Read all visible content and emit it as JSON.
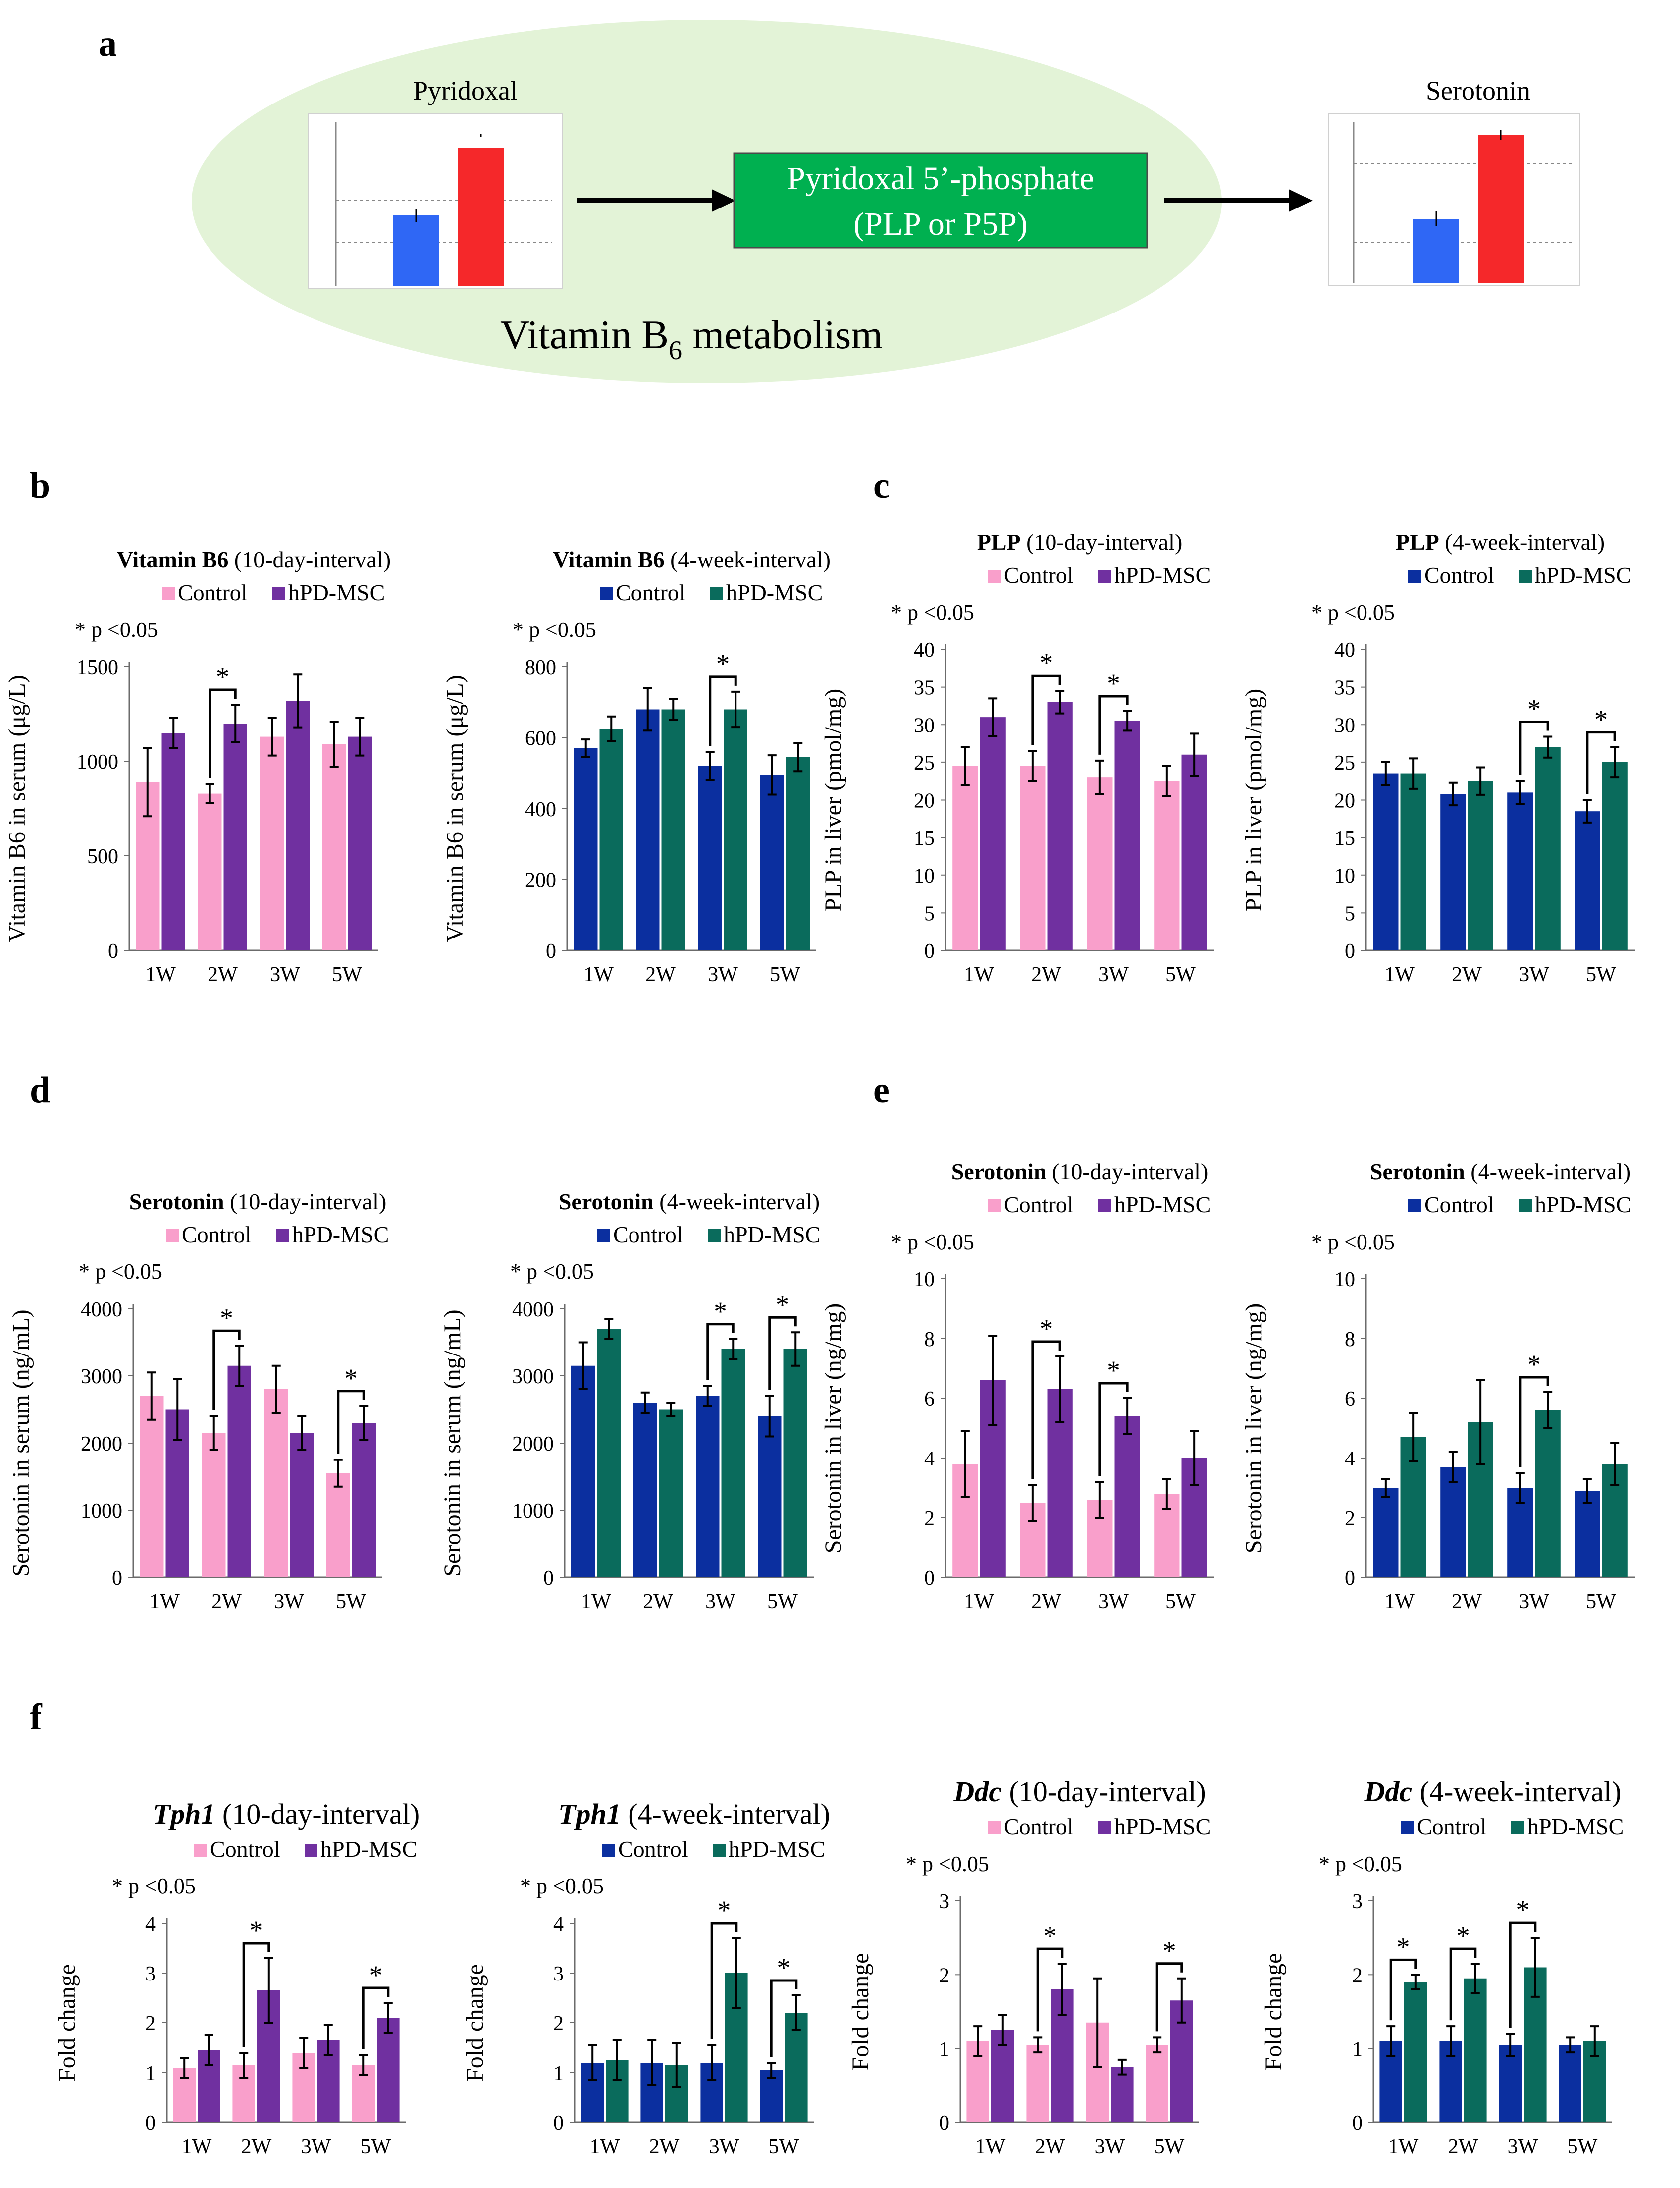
{
  "colors": {
    "pink": "#f99fcb",
    "purple": "#7030a0",
    "navy": "#0b2f9f",
    "teal": "#0a6b5c",
    "blue": "#2f67f5",
    "red": "#f5282a",
    "green": "#00b050",
    "ellipse": "#e3f3d7"
  },
  "panel_a": {
    "letter": "a",
    "pyridoxal_label": "Pyridoxal",
    "serotonin_label": "Serotonin",
    "plp_line1": "Pyridoxal 5’-phosphate",
    "plp_line2": "(PLP or P5P)",
    "vitamin_text": "Vitamin B",
    "vitamin_sub": "6",
    "vitamin_text2": " metabolism"
  },
  "chart_data": [
    {
      "id": "b1",
      "panel": "b",
      "type": "bar",
      "title_bold": "Vitamin B6",
      "title_rest": " (10-day-interval)",
      "ylabel": "Vitamin B6 in serum (μg/L)",
      "ylim": [
        0,
        1500
      ],
      "ticks": [
        0,
        500,
        1000,
        1500
      ],
      "categories": [
        "1W",
        "2W",
        "3W",
        "5W"
      ],
      "legend": [
        "Control",
        "hPD-MSC"
      ],
      "pnote": "* p <0.05",
      "colors": [
        "#f99fcb",
        "#7030a0"
      ],
      "series": [
        {
          "name": "Control",
          "values": [
            890,
            830,
            1130,
            1090
          ],
          "errors": [
            180,
            50,
            100,
            120
          ]
        },
        {
          "name": "hPD-MSC",
          "values": [
            1150,
            1200,
            1320,
            1130
          ],
          "errors": [
            80,
            100,
            140,
            100
          ]
        }
      ],
      "sig": [
        1
      ]
    },
    {
      "id": "b2",
      "type": "bar",
      "title_bold": "Vitamin B6",
      "title_rest": " (4-week-interval)",
      "ylabel": "Vitamin B6 in serum (μg/L)",
      "ylim": [
        0,
        800
      ],
      "ticks": [
        0,
        200,
        400,
        600,
        800
      ],
      "categories": [
        "1W",
        "2W",
        "3W",
        "5W"
      ],
      "legend": [
        "Control",
        "hPD-MSC"
      ],
      "pnote": "* p <0.05",
      "colors": [
        "#0b2f9f",
        "#0a6b5c"
      ],
      "series": [
        {
          "name": "Control",
          "values": [
            570,
            680,
            520,
            495
          ],
          "errors": [
            25,
            60,
            40,
            55
          ]
        },
        {
          "name": "hPD-MSC",
          "values": [
            625,
            680,
            680,
            545
          ],
          "errors": [
            35,
            30,
            50,
            40
          ]
        }
      ],
      "sig": [
        2
      ]
    },
    {
      "id": "c1",
      "panel": "c",
      "type": "bar",
      "title_bold": "PLP",
      "title_rest": " (10-day-interval)",
      "ylabel": "PLP in liver (pmol/mg)",
      "ylim": [
        0,
        40
      ],
      "ticks": [
        0,
        5,
        10,
        15,
        20,
        25,
        30,
        35,
        40
      ],
      "categories": [
        "1W",
        "2W",
        "3W",
        "5W"
      ],
      "legend": [
        "Control",
        "hPD-MSC"
      ],
      "pnote": "* p <0.05",
      "colors": [
        "#f99fcb",
        "#7030a0"
      ],
      "series": [
        {
          "name": "Control",
          "values": [
            24.5,
            24.5,
            23,
            22.5
          ],
          "errors": [
            2.5,
            2,
            2.2,
            2
          ]
        },
        {
          "name": "hPD-MSC",
          "values": [
            31,
            33,
            30.5,
            26
          ],
          "errors": [
            2.5,
            1.5,
            1.3,
            2.8
          ]
        }
      ],
      "sig": [
        1,
        2
      ]
    },
    {
      "id": "c2",
      "type": "bar",
      "title_bold": "PLP",
      "title_rest": " (4-week-interval)",
      "ylabel": "PLP in liver (pmol/mg)",
      "ylim": [
        0,
        40
      ],
      "ticks": [
        0,
        5,
        10,
        15,
        20,
        25,
        30,
        35,
        40
      ],
      "categories": [
        "1W",
        "2W",
        "3W",
        "5W"
      ],
      "legend": [
        "Control",
        "hPD-MSC"
      ],
      "pnote": "* p <0.05",
      "colors": [
        "#0b2f9f",
        "#0a6b5c"
      ],
      "series": [
        {
          "name": "Control",
          "values": [
            23.5,
            20.8,
            21,
            18.5
          ],
          "errors": [
            1.5,
            1.5,
            1.5,
            1.5
          ]
        },
        {
          "name": "hPD-MSC",
          "values": [
            23.5,
            22.5,
            27,
            25
          ],
          "errors": [
            2,
            1.8,
            1.4,
            2
          ]
        }
      ],
      "sig": [
        2,
        3
      ]
    },
    {
      "id": "d1",
      "panel": "d",
      "type": "bar",
      "title_bold": "Serotonin",
      "title_rest": " (10-day-interval)",
      "ylabel": "Serotonin in serum (ng/mL)",
      "ylim": [
        0,
        4000
      ],
      "ticks": [
        0,
        1000,
        2000,
        3000,
        4000
      ],
      "categories": [
        "1W",
        "2W",
        "3W",
        "5W"
      ],
      "legend": [
        "Control",
        "hPD-MSC"
      ],
      "pnote": "* p <0.05",
      "colors": [
        "#f99fcb",
        "#7030a0"
      ],
      "series": [
        {
          "name": "Control",
          "values": [
            2700,
            2150,
            2800,
            1550
          ],
          "errors": [
            350,
            250,
            350,
            200
          ]
        },
        {
          "name": "hPD-MSC",
          "values": [
            2500,
            3150,
            2150,
            2300
          ],
          "errors": [
            450,
            300,
            250,
            250
          ]
        }
      ],
      "sig": [
        1,
        3
      ]
    },
    {
      "id": "d2",
      "type": "bar",
      "title_bold": "Serotonin",
      "title_rest": " (4-week-interval)",
      "ylabel": "Serotonin in serum (ng/mL)",
      "ylim": [
        0,
        4000
      ],
      "ticks": [
        0,
        1000,
        2000,
        3000,
        4000
      ],
      "categories": [
        "1W",
        "2W",
        "3W",
        "5W"
      ],
      "legend": [
        "Control",
        "hPD-MSC"
      ],
      "pnote": "* p <0.05",
      "colors": [
        "#0b2f9f",
        "#0a6b5c"
      ],
      "series": [
        {
          "name": "Control",
          "values": [
            3150,
            2600,
            2700,
            2400
          ],
          "errors": [
            350,
            150,
            150,
            300
          ]
        },
        {
          "name": "hPD-MSC",
          "values": [
            3700,
            2500,
            3400,
            3400
          ],
          "errors": [
            150,
            100,
            150,
            250
          ]
        }
      ],
      "sig": [
        2,
        3
      ]
    },
    {
      "id": "e1",
      "panel": "e",
      "type": "bar",
      "title_bold": "Serotonin",
      "title_rest": " (10-day-interval)",
      "ylabel": "Serotonin in liver (ng/mg)",
      "ylim": [
        0,
        10
      ],
      "ticks": [
        0,
        2,
        4,
        6,
        8,
        10
      ],
      "categories": [
        "1W",
        "2W",
        "3W",
        "5W"
      ],
      "legend": [
        "Control",
        "hPD-MSC"
      ],
      "pnote": "* p <0.05",
      "colors": [
        "#f99fcb",
        "#7030a0"
      ],
      "series": [
        {
          "name": "Control",
          "values": [
            3.8,
            2.5,
            2.6,
            2.8
          ],
          "errors": [
            1.1,
            0.6,
            0.6,
            0.5
          ]
        },
        {
          "name": "hPD-MSC",
          "values": [
            6.6,
            6.3,
            5.4,
            4
          ],
          "errors": [
            1.5,
            1.1,
            0.6,
            0.9
          ]
        }
      ],
      "sig": [
        1,
        2
      ]
    },
    {
      "id": "e2",
      "type": "bar",
      "title_bold": "Serotonin",
      "title_rest": " (4-week-interval)",
      "ylabel": "Serotonin in liver (ng/mg)",
      "ylim": [
        0,
        10
      ],
      "ticks": [
        0,
        2,
        4,
        6,
        8,
        10
      ],
      "categories": [
        "1W",
        "2W",
        "3W",
        "5W"
      ],
      "legend": [
        "Control",
        "hPD-MSC"
      ],
      "pnote": "* p <0.05",
      "colors": [
        "#0b2f9f",
        "#0a6b5c"
      ],
      "series": [
        {
          "name": "Control",
          "values": [
            3,
            3.7,
            3,
            2.9
          ],
          "errors": [
            0.3,
            0.5,
            0.5,
            0.4
          ]
        },
        {
          "name": "hPD-MSC",
          "values": [
            4.7,
            5.2,
            5.6,
            3.8
          ],
          "errors": [
            0.8,
            1.4,
            0.6,
            0.7
          ]
        }
      ],
      "sig": [
        2
      ]
    },
    {
      "id": "f1",
      "panel": "f",
      "type": "bar",
      "title_bold": "Tph1",
      "title_rest": " (10-day-interval)",
      "ylabel": "Fold change",
      "ylim": [
        0,
        4
      ],
      "ticks": [
        0,
        1,
        2,
        3,
        4
      ],
      "categories": [
        "1W",
        "2W",
        "3W",
        "5W"
      ],
      "legend": [
        "Control",
        "hPD-MSC"
      ],
      "pnote": "* p <0.05",
      "colors": [
        "#f99fcb",
        "#7030a0"
      ],
      "series": [
        {
          "name": "Control",
          "values": [
            1.1,
            1.15,
            1.4,
            1.15
          ],
          "errors": [
            0.2,
            0.25,
            0.3,
            0.2
          ]
        },
        {
          "name": "hPD-MSC",
          "values": [
            1.45,
            2.65,
            1.65,
            2.1
          ],
          "errors": [
            0.3,
            0.65,
            0.3,
            0.3
          ]
        }
      ],
      "sig": [
        1,
        3
      ]
    },
    {
      "id": "f2",
      "type": "bar",
      "title_bold": "Tph1",
      "title_rest": " (4-week-interval)",
      "ylabel": "Fold change",
      "ylim": [
        0,
        4
      ],
      "ticks": [
        0,
        1,
        2,
        3,
        4
      ],
      "categories": [
        "1W",
        "2W",
        "3W",
        "5W"
      ],
      "legend": [
        "Control",
        "hPD-MSC"
      ],
      "pnote": "* p <0.05",
      "colors": [
        "#0b2f9f",
        "#0a6b5c"
      ],
      "series": [
        {
          "name": "Control",
          "values": [
            1.2,
            1.2,
            1.2,
            1.05
          ],
          "errors": [
            0.35,
            0.45,
            0.35,
            0.15
          ]
        },
        {
          "name": "hPD-MSC",
          "values": [
            1.25,
            1.15,
            3,
            2.2
          ],
          "errors": [
            0.4,
            0.45,
            0.7,
            0.35
          ]
        }
      ],
      "sig": [
        2,
        3
      ]
    },
    {
      "id": "f3",
      "type": "bar",
      "title_bold": "Ddc",
      "title_rest": " (10-day-interval)",
      "ylabel": "Fold change",
      "ylim": [
        0,
        3
      ],
      "ticks": [
        0,
        1,
        2,
        3
      ],
      "categories": [
        "1W",
        "2W",
        "3W",
        "5W"
      ],
      "legend": [
        "Control",
        "hPD-MSC"
      ],
      "pnote": "* p <0.05",
      "colors": [
        "#f99fcb",
        "#7030a0"
      ],
      "series": [
        {
          "name": "Control",
          "values": [
            1.1,
            1.05,
            1.35,
            1.05
          ],
          "errors": [
            0.2,
            0.1,
            0.6,
            0.1
          ]
        },
        {
          "name": "hPD-MSC",
          "values": [
            1.25,
            1.8,
            0.75,
            1.65
          ],
          "errors": [
            0.2,
            0.35,
            0.1,
            0.3
          ]
        }
      ],
      "sig": [
        1,
        3
      ]
    },
    {
      "id": "f4",
      "type": "bar",
      "title_bold": "Ddc",
      "title_rest": " (4-week-interval)",
      "ylabel": "Fold change",
      "ylim": [
        0,
        3
      ],
      "ticks": [
        0,
        1,
        2,
        3
      ],
      "categories": [
        "1W",
        "2W",
        "3W",
        "5W"
      ],
      "legend": [
        "Control",
        "hPD-MSC"
      ],
      "pnote": "* p <0.05",
      "colors": [
        "#0b2f9f",
        "#0a6b5c"
      ],
      "series": [
        {
          "name": "Control",
          "values": [
            1.1,
            1.1,
            1.05,
            1.05
          ],
          "errors": [
            0.2,
            0.2,
            0.15,
            0.1
          ]
        },
        {
          "name": "hPD-MSC",
          "values": [
            1.9,
            1.95,
            2.1,
            1.1
          ],
          "errors": [
            0.1,
            0.2,
            0.4,
            0.2
          ]
        }
      ],
      "sig": [
        0,
        1,
        2
      ]
    }
  ]
}
